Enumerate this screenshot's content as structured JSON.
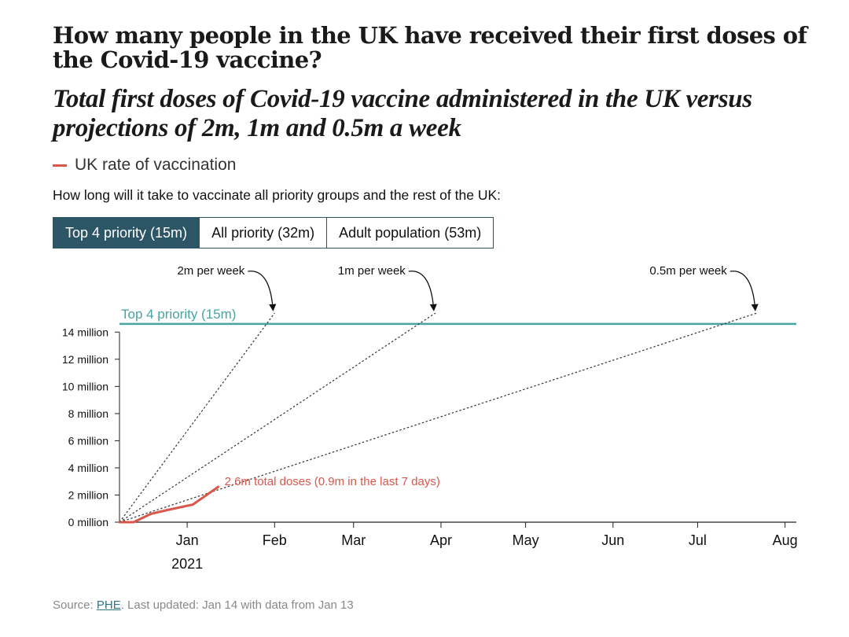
{
  "header": {
    "title": "How many people in the UK have received their first doses of the Covid-19 vaccine?",
    "subtitle": "Total first doses of Covid-19 vaccine administered in the UK versus projections of 2m, 1m and 0.5m a week"
  },
  "legend": {
    "label": "UK rate of vaccination",
    "color": "#d9574a"
  },
  "question": "How long will it take to vaccinate all priority groups and the rest of the UK:",
  "tabs": [
    {
      "label": "Top 4 priority (15m)",
      "active": true
    },
    {
      "label": "All priority (32m)",
      "active": false
    },
    {
      "label": "Adult population (53m)",
      "active": false
    }
  ],
  "chart_data": {
    "type": "line",
    "title": "How many people in the UK have received their first doses of the Covid-19 vaccine?",
    "xlabel": "",
    "ylabel": "",
    "x_axis": {
      "unit": "days since 2020-12-08",
      "range": [
        0,
        240
      ],
      "ticks": [
        {
          "day": 24,
          "label": "Jan"
        },
        {
          "day": 55,
          "label": "Feb"
        },
        {
          "day": 83,
          "label": "Mar"
        },
        {
          "day": 114,
          "label": "Apr"
        },
        {
          "day": 144,
          "label": "May"
        },
        {
          "day": 175,
          "label": "Jun"
        },
        {
          "day": 205,
          "label": "Jul"
        },
        {
          "day": 236,
          "label": "Aug"
        }
      ],
      "year_label": "2021",
      "year_label_day": 24
    },
    "y_axis": {
      "range": [
        0,
        15
      ],
      "ticks": [
        0,
        2,
        4,
        6,
        8,
        10,
        12,
        14
      ],
      "tick_suffix": " million"
    },
    "series": [
      {
        "name": "UK rate of vaccination",
        "color": "#d9574a",
        "style": "solid",
        "points": [
          [
            0,
            0
          ],
          [
            5,
            0
          ],
          [
            11,
            0.6
          ],
          [
            17,
            0.9
          ],
          [
            26,
            1.3
          ],
          [
            35,
            2.6
          ]
        ]
      }
    ],
    "projections": [
      {
        "label": "2m per week",
        "rate_million_per_week": 2,
        "end_day": 55
      },
      {
        "label": "1m per week",
        "rate_million_per_week": 1,
        "end_day": 112
      },
      {
        "label": "0.5m per week",
        "rate_million_per_week": 0.5,
        "end_day": 226
      }
    ],
    "target": {
      "label": "Top 4 priority (15m)",
      "value_million": 14.6,
      "color": "#4aa3a3"
    },
    "annotation": {
      "text": "2.6m total doses (0.9m in the last 7 days)",
      "color": "#d9574a"
    }
  },
  "source": {
    "prefix": "Source: ",
    "link_text": "PHE",
    "suffix": ". Last updated: Jan 14 with data from Jan 13"
  }
}
